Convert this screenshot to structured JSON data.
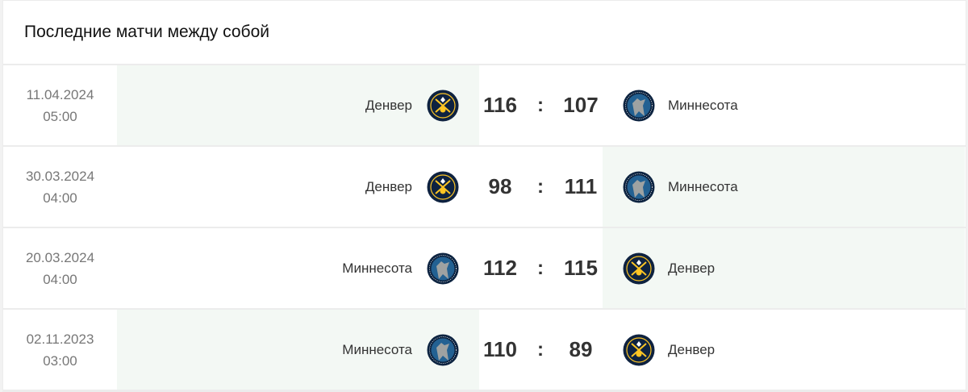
{
  "title": "Последние матчи между собой",
  "teams": {
    "den": {
      "name": "Денвер",
      "logo_icon": "denver-nuggets-logo",
      "colors": [
        "#0e2240",
        "#fec524"
      ]
    },
    "min": {
      "name": "Миннесота",
      "logo_icon": "minnesota-timberwolves-logo",
      "colors": [
        "#0c2340",
        "#236192"
      ]
    }
  },
  "highlight_color": "#f3f8f4",
  "matches": [
    {
      "date": "11.04.2024",
      "time": "05:00",
      "home": "Денвер",
      "home_key": "den",
      "home_score": "116",
      "away": "Миннесота",
      "away_key": "min",
      "away_score": "107",
      "winner": "home"
    },
    {
      "date": "30.03.2024",
      "time": "04:00",
      "home": "Денвер",
      "home_key": "den",
      "home_score": "98",
      "away": "Миннесота",
      "away_key": "min",
      "away_score": "111",
      "winner": "away"
    },
    {
      "date": "20.03.2024",
      "time": "04:00",
      "home": "Миннесота",
      "home_key": "min",
      "home_score": "112",
      "away": "Денвер",
      "away_key": "den",
      "away_score": "115",
      "winner": "away"
    },
    {
      "date": "02.11.2023",
      "time": "03:00",
      "home": "Миннесота",
      "home_key": "min",
      "home_score": "110",
      "away": "Денвер",
      "away_key": "den",
      "away_score": "89",
      "winner": "home"
    }
  ],
  "separator": ":"
}
